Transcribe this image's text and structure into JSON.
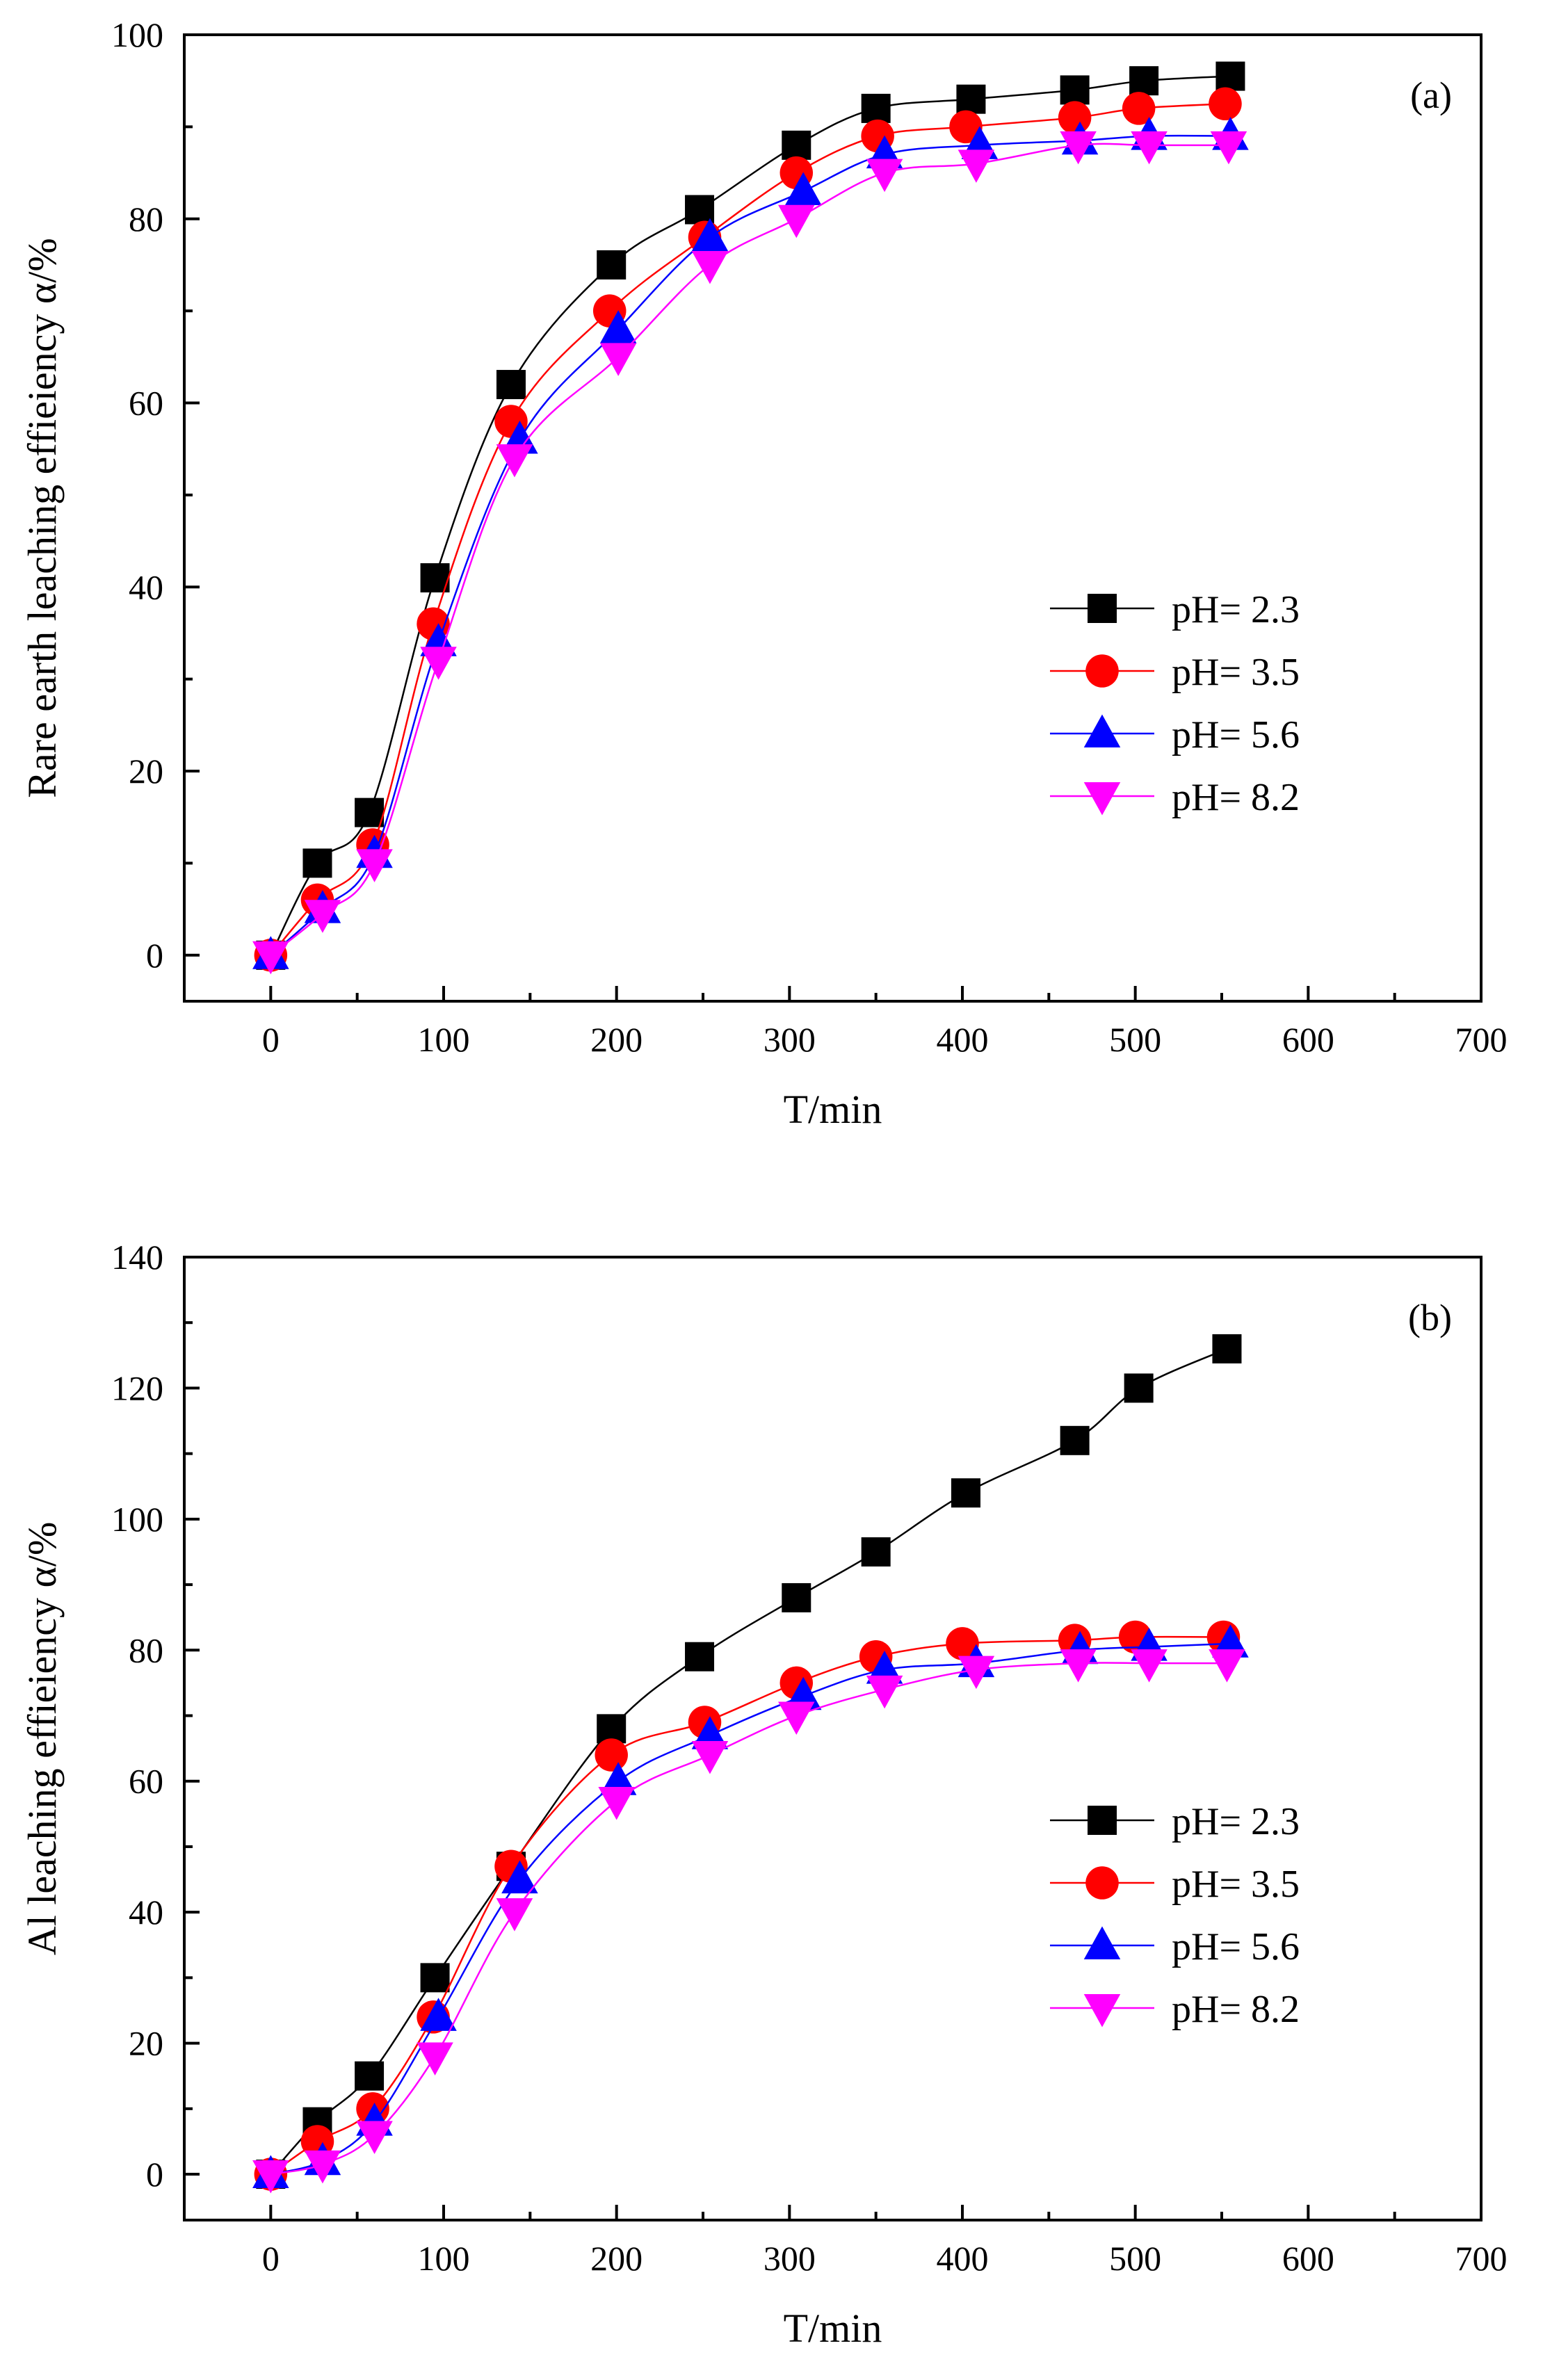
{
  "chart_data": [
    {
      "type": "line",
      "panel_label": "(a)",
      "title": "",
      "xlabel": "T/min",
      "ylabel": "Rare earth leaching effieiency α/%",
      "xlim": [
        -50,
        700
      ],
      "ylim": [
        -5,
        100
      ],
      "xticks": [
        0,
        100,
        200,
        300,
        400,
        500,
        600,
        700
      ],
      "yticks": [
        0,
        20,
        40,
        60,
        80,
        100
      ],
      "x_tick_labels": [
        "0",
        "100",
        "200",
        "300",
        "400",
        "500",
        "600",
        "700"
      ],
      "y_tick_labels": [
        "0",
        "20",
        "40",
        "60",
        "80",
        "100"
      ],
      "legend_position": "center-right",
      "series": [
        {
          "name": "pH= 2.3",
          "color": "#000000",
          "marker": "square",
          "x": [
            0,
            27,
            57,
            95,
            139,
            197,
            248,
            304,
            350,
            405,
            465,
            505,
            555
          ],
          "y": [
            0,
            10,
            15.5,
            41,
            62,
            75,
            81,
            88,
            92,
            93,
            94,
            95,
            95.5
          ]
        },
        {
          "name": "pH= 3.5",
          "color": "#ff0000",
          "marker": "circle",
          "x": [
            0,
            27,
            59,
            94,
            139,
            196,
            251,
            304,
            351,
            402,
            465,
            502,
            552
          ],
          "y": [
            0,
            6,
            12,
            36,
            58,
            70,
            78,
            85,
            89,
            90,
            91,
            92,
            92.5
          ]
        },
        {
          "name": "pH= 5.6",
          "color": "#0000ff",
          "marker": "triangle-up",
          "x": [
            0,
            30,
            60,
            97,
            144,
            201,
            254,
            308,
            355,
            410,
            468,
            508,
            555
          ],
          "y": [
            0,
            5,
            11,
            34,
            56,
            68,
            78,
            83,
            87,
            88,
            88.5,
            89,
            89
          ]
        },
        {
          "name": "pH= 8.2",
          "color": "#ff00ff",
          "marker": "triangle-down",
          "x": [
            0,
            30,
            60,
            97,
            141,
            201,
            254,
            304,
            355,
            408,
            467,
            508,
            554
          ],
          "y": [
            0,
            4.5,
            10,
            32,
            54,
            65,
            75,
            80,
            85,
            86,
            88,
            88,
            88
          ]
        }
      ]
    },
    {
      "type": "line",
      "panel_label": "(b)",
      "title": "",
      "xlabel": "T/min",
      "ylabel": "Al leaching effieiency α/%",
      "xlim": [
        -50,
        700
      ],
      "ylim": [
        -7,
        140
      ],
      "xticks": [
        0,
        100,
        200,
        300,
        400,
        500,
        600,
        700
      ],
      "yticks": [
        0,
        20,
        40,
        60,
        80,
        100,
        120,
        140
      ],
      "x_tick_labels": [
        "0",
        "100",
        "200",
        "300",
        "400",
        "500",
        "600",
        "700"
      ],
      "y_tick_labels": [
        "0",
        "20",
        "40",
        "60",
        "80",
        "100",
        "120",
        "140"
      ],
      "legend_position": "lower-right",
      "series": [
        {
          "name": "pH= 2.3",
          "color": "#000000",
          "marker": "square",
          "x": [
            0,
            27,
            57,
            95,
            139,
            197,
            248,
            304,
            350,
            402,
            465,
            502,
            553
          ],
          "y": [
            0,
            8,
            15,
            30,
            47,
            68,
            79,
            88,
            95,
            104,
            112,
            120,
            126
          ]
        },
        {
          "name": "pH= 3.5",
          "color": "#ff0000",
          "marker": "circle",
          "x": [
            0,
            27,
            59,
            94,
            139,
            197,
            251,
            304,
            350,
            400,
            465,
            500,
            551
          ],
          "y": [
            0,
            5,
            10,
            24,
            47,
            64,
            69,
            75,
            79,
            81,
            81.5,
            82,
            82
          ]
        },
        {
          "name": "pH= 5.6",
          "color": "#0000ff",
          "marker": "triangle-up",
          "x": [
            0,
            30,
            60,
            97,
            144,
            201,
            254,
            308,
            355,
            408,
            468,
            508,
            555
          ],
          "y": [
            0,
            2,
            8,
            24,
            45,
            60,
            67,
            73,
            77,
            78,
            80,
            80.5,
            81
          ]
        },
        {
          "name": "pH= 8.2",
          "color": "#ff00ff",
          "marker": "triangle-down",
          "x": [
            0,
            30,
            60,
            95,
            141,
            200,
            254,
            304,
            355,
            408,
            467,
            508,
            553
          ],
          "y": [
            0,
            1.5,
            6,
            18,
            40,
            57,
            64,
            70,
            74,
            77,
            78,
            78,
            78
          ]
        }
      ]
    }
  ]
}
